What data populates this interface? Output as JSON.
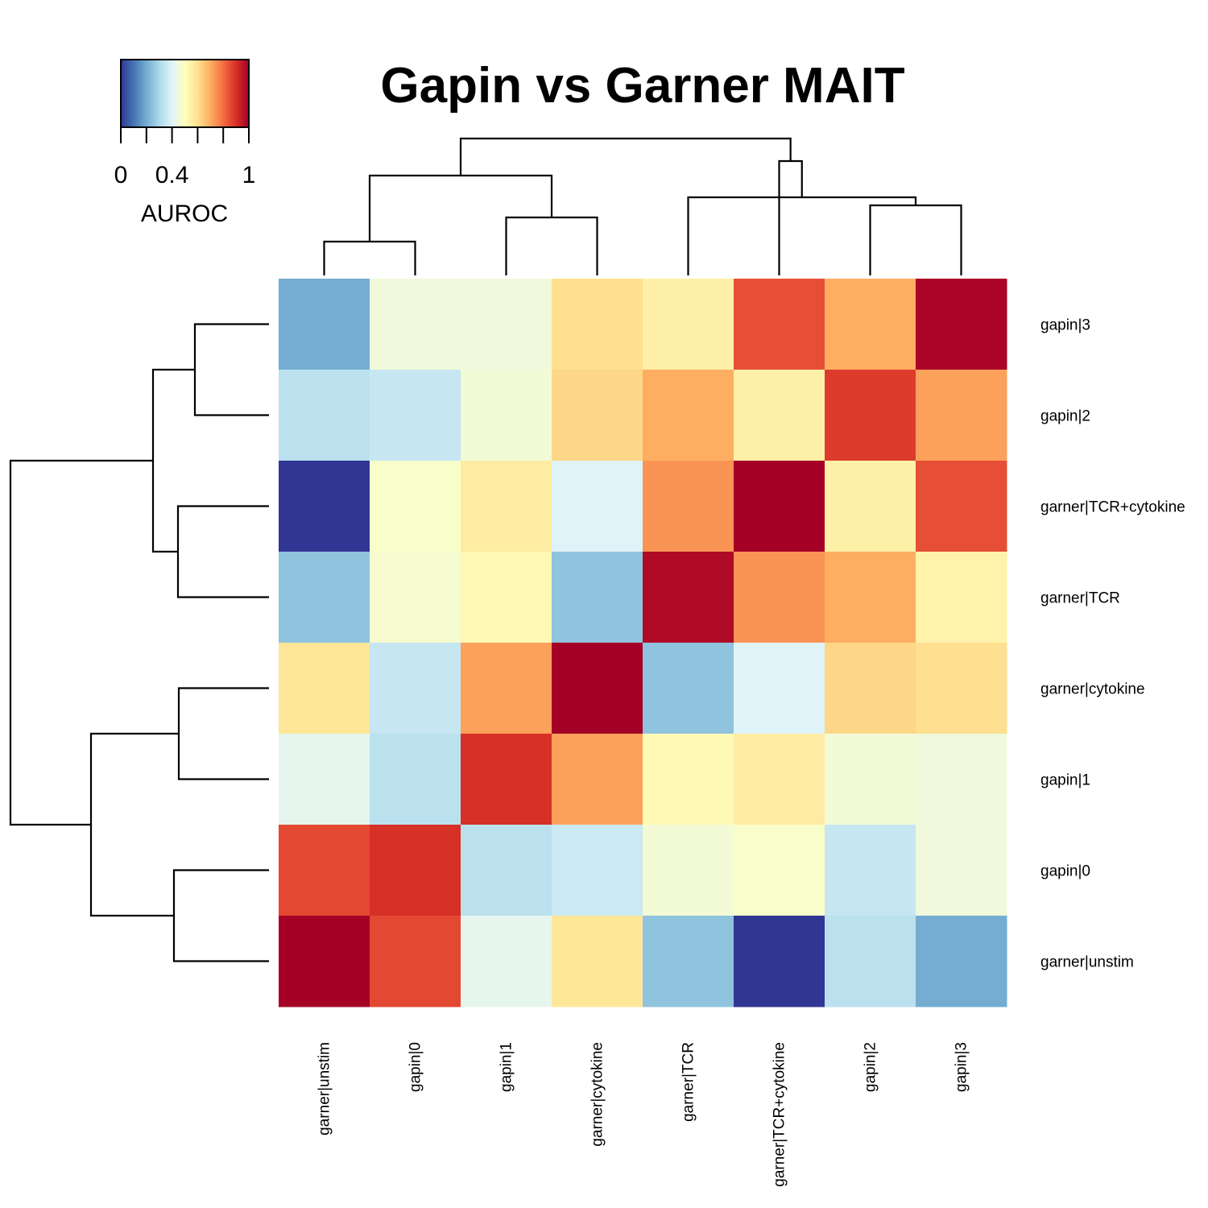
{
  "chart_data": {
    "type": "heatmap",
    "title": "Gapin vs Garner MAIT",
    "columns": [
      "garner|unstim",
      "gapin|0",
      "gapin|1",
      "garner|cytokine",
      "garner|TCR",
      "garner|TCR+cytokine",
      "gapin|2",
      "gapin|3"
    ],
    "rows": [
      "gapin|3",
      "gapin|2",
      "garner|TCR+cytokine",
      "garner|TCR",
      "garner|cytokine",
      "gapin|1",
      "gapin|0",
      "garner|unstim"
    ],
    "values": [
      [
        0.2,
        0.45,
        0.45,
        0.6,
        0.55,
        0.85,
        0.7,
        0.99
      ],
      [
        0.33,
        0.35,
        0.46,
        0.62,
        0.7,
        0.55,
        0.88,
        0.72
      ],
      [
        0.0,
        0.48,
        0.56,
        0.4,
        0.74,
        1.0,
        0.55,
        0.85
      ],
      [
        0.25,
        0.47,
        0.52,
        0.25,
        0.98,
        0.74,
        0.7,
        0.54
      ],
      [
        0.58,
        0.35,
        0.72,
        1.0,
        0.25,
        0.4,
        0.62,
        0.6
      ],
      [
        0.42,
        0.33,
        0.9,
        0.72,
        0.52,
        0.56,
        0.46,
        0.45
      ],
      [
        0.86,
        0.9,
        0.33,
        0.36,
        0.46,
        0.48,
        0.35,
        0.45
      ],
      [
        1.0,
        0.86,
        0.42,
        0.58,
        0.25,
        0.0,
        0.33,
        0.2
      ]
    ],
    "colorbar": {
      "label": "AUROC",
      "ticks": [
        "0",
        "0.4",
        "1"
      ],
      "tick_values": [
        0,
        0.4,
        1
      ],
      "range": [
        0,
        1
      ],
      "colors": [
        "#313695",
        "#4575b4",
        "#74add1",
        "#abd9e9",
        "#e0f3f8",
        "#ffffbf",
        "#fee090",
        "#fdae61",
        "#f46d43",
        "#d73027",
        "#a50026"
      ]
    },
    "row_dendrogram": [
      [
        0,
        1
      ],
      [
        2,
        3
      ],
      [
        [
          0,
          1
        ],
        [
          2,
          3
        ]
      ],
      [
        4,
        5
      ],
      [
        6,
        7
      ],
      [
        [
          4,
          5
        ],
        [
          6,
          7
        ]
      ],
      [
        [
          [
            0,
            1
          ],
          [
            2,
            3
          ]
        ],
        [
          [
            4,
            5
          ],
          [
            6,
            7
          ]
        ]
      ]
    ],
    "col_dendrogram": [
      [
        0,
        1
      ],
      [
        2,
        3
      ],
      [
        [
          0,
          1
        ],
        [
          2,
          3
        ]
      ],
      [
        6,
        7
      ],
      [
        4,
        [
          6,
          7
        ]
      ],
      [
        5,
        [
          4,
          [
            6,
            7
          ]
        ]
      ],
      [
        [
          [
            0,
            1
          ],
          [
            2,
            3
          ]
        ],
        [
          5,
          [
            4,
            [
              6,
              7
            ]
          ]
        ]
      ]
    ]
  }
}
